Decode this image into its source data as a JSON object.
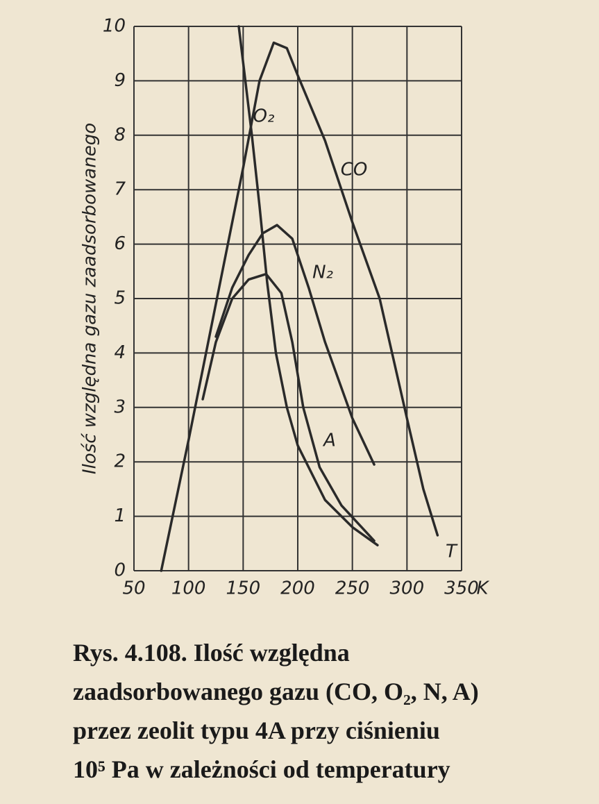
{
  "chart_data": {
    "type": "line",
    "y_label": "Ilość względna gazu zaadsorbowanego",
    "x_label": "T",
    "x_unit": "K",
    "xlim": [
      50,
      350
    ],
    "xticks": [
      50,
      100,
      150,
      200,
      250,
      300,
      350
    ],
    "ylim": [
      0,
      10
    ],
    "yticks": [
      0,
      1,
      2,
      3,
      4,
      5,
      6,
      7,
      8,
      9,
      10
    ],
    "grid": true,
    "series": [
      {
        "name": "CO",
        "color": "#2a2a2a",
        "x": [
          75,
          100,
          125,
          150,
          165,
          178,
          190,
          200,
          225,
          250,
          275,
          300,
          315,
          328
        ],
        "values": [
          0,
          2.4,
          4.9,
          7.4,
          9.0,
          9.7,
          9.6,
          9.1,
          7.9,
          6.4,
          5.0,
          2.8,
          1.5,
          0.65
        ]
      },
      {
        "name": "O₂",
        "color": "#2a2a2a",
        "x": [
          146,
          152,
          158,
          165,
          172,
          180,
          190,
          200,
          225,
          250,
          273
        ],
        "values": [
          10,
          9,
          8,
          6.7,
          5.3,
          4.0,
          3.0,
          2.3,
          1.3,
          0.8,
          0.47
        ]
      },
      {
        "name": "N₂",
        "color": "#2a2a2a",
        "x": [
          125,
          140,
          155,
          168,
          181,
          195,
          210,
          225,
          250,
          270
        ],
        "values": [
          4.3,
          5.2,
          5.8,
          6.2,
          6.35,
          6.1,
          5.2,
          4.2,
          2.8,
          1.95
        ]
      },
      {
        "name": "A",
        "color": "#2a2a2a",
        "x": [
          113,
          125,
          140,
          155,
          171,
          185,
          195,
          205,
          220,
          240,
          270
        ],
        "values": [
          3.15,
          4.2,
          5.0,
          5.35,
          5.45,
          5.1,
          4.2,
          3.0,
          1.9,
          1.2,
          0.55
        ]
      }
    ]
  },
  "caption": {
    "lines": [
      "Rys. 4.108. Ilość względna",
      "zaadsorbowanego gazu (CO, O₂, N, A)",
      "przez zeolit typu 4A przy ciśnieniu",
      "10⁵ Pa w zależności od temperatury"
    ]
  }
}
